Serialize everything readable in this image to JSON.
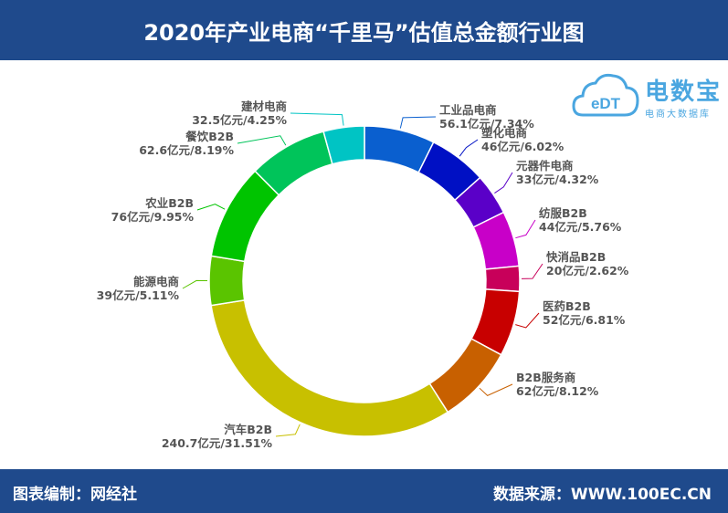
{
  "header": {
    "title": "2020年产业电商“千里马”估值总金额行业图"
  },
  "footer": {
    "left": "图表编制：网经社",
    "right": "数据来源：WWW.100EC.CN"
  },
  "logo": {
    "mark": "eDT",
    "name": "电数宝",
    "sub": "电商大数据库"
  },
  "chart_data": {
    "type": "pie",
    "variant": "donut",
    "unit": "亿元",
    "slices": [
      {
        "name": "工业品电商",
        "value": 56.1,
        "percent": 7.34,
        "label": "56.1亿元/7.34%",
        "color": "#0a5fcf"
      },
      {
        "name": "塑化电商",
        "value": 46,
        "percent": 6.02,
        "label": "46亿元/6.02%",
        "color": "#0010c4"
      },
      {
        "name": "元器件电商",
        "value": 33,
        "percent": 4.32,
        "label": "33亿元/4.32%",
        "color": "#5a00c8"
      },
      {
        "name": "纺服B2B",
        "value": 44,
        "percent": 5.76,
        "label": "44亿元/5.76%",
        "color": "#c800c8"
      },
      {
        "name": "快消品B2B",
        "value": 20,
        "percent": 2.62,
        "label": "20亿元/2.62%",
        "color": "#c8005a"
      },
      {
        "name": "医药B2B",
        "value": 52,
        "percent": 6.81,
        "label": "52亿元/6.81%",
        "color": "#c80000"
      },
      {
        "name": "B2B服务商",
        "value": 62,
        "percent": 8.12,
        "label": "62亿元/8.12%",
        "color": "#c86000"
      },
      {
        "name": "汽车B2B",
        "value": 240.7,
        "percent": 31.51,
        "label": "240.7亿元/31.51%",
        "color": "#c8c000"
      },
      {
        "name": "能源电商",
        "value": 39,
        "percent": 5.11,
        "label": "39亿元/5.11%",
        "color": "#5ac400"
      },
      {
        "name": "农业B2B",
        "value": 76,
        "percent": 9.95,
        "label": "76亿元/9.95%",
        "color": "#00c400"
      },
      {
        "name": "餐饮B2B",
        "value": 62.6,
        "percent": 8.19,
        "label": "62.6亿元/8.19%",
        "color": "#00c45a"
      },
      {
        "name": "建材电商",
        "value": 32.5,
        "percent": 4.25,
        "label": "32.5亿元/4.25%",
        "color": "#00c4c4"
      }
    ],
    "legend": "none"
  }
}
